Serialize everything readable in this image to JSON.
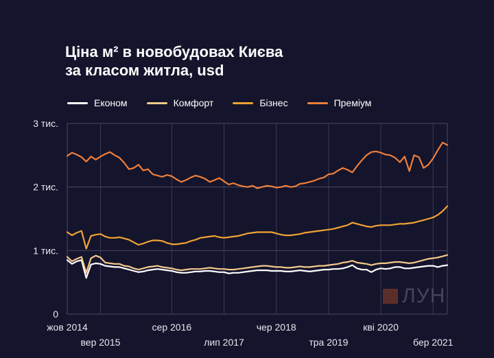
{
  "title_line1": "Ціна м² в новобудовах Києва",
  "title_line2": "за класом житла, usd",
  "watermark": "ЛУН",
  "chart_data": {
    "type": "line",
    "grid": true,
    "legend_position": "top",
    "ylim": [
      0,
      3000
    ],
    "yticks": [
      {
        "value": 0,
        "label": "0"
      },
      {
        "value": 1000,
        "label": "1 тис."
      },
      {
        "value": 2000,
        "label": "2 тис."
      },
      {
        "value": 3000,
        "label": "3 тис."
      }
    ],
    "xlim": [
      0,
      80
    ],
    "xticks": [
      {
        "value": 0,
        "label": "жов 2014",
        "row": 1
      },
      {
        "value": 7,
        "label": "вер 2015",
        "row": 2
      },
      {
        "value": 22,
        "label": "сер 2016",
        "row": 1
      },
      {
        "value": 33,
        "label": "лип 2017",
        "row": 2
      },
      {
        "value": 44,
        "label": "чер 2018",
        "row": 1
      },
      {
        "value": 55,
        "label": "тра 2019",
        "row": 2
      },
      {
        "value": 66,
        "label": "кві 2020",
        "row": 1
      },
      {
        "value": 77,
        "label": "бер 2021",
        "row": 2
      }
    ],
    "series": [
      {
        "name": "Економ",
        "color": "#ffffff",
        "values": [
          850,
          790,
          830,
          850,
          570,
          780,
          800,
          790,
          760,
          750,
          740,
          740,
          720,
          700,
          680,
          660,
          670,
          690,
          700,
          710,
          700,
          690,
          680,
          660,
          650,
          650,
          660,
          670,
          670,
          680,
          680,
          670,
          660,
          660,
          640,
          650,
          650,
          660,
          670,
          680,
          690,
          690,
          690,
          680,
          680,
          680,
          670,
          670,
          680,
          690,
          680,
          670,
          680,
          690,
          700,
          700,
          710,
          710,
          720,
          740,
          770,
          720,
          700,
          700,
          660,
          700,
          720,
          710,
          720,
          740,
          740,
          720,
          720,
          730,
          740,
          750,
          760,
          760,
          740,
          760,
          770
        ]
      },
      {
        "name": "Комфорт",
        "color": "#f3c98a",
        "values": [
          900,
          830,
          870,
          900,
          650,
          880,
          920,
          890,
          810,
          800,
          790,
          790,
          760,
          750,
          720,
          700,
          720,
          740,
          750,
          760,
          740,
          730,
          720,
          700,
          690,
          700,
          710,
          710,
          710,
          720,
          730,
          720,
          710,
          710,
          700,
          700,
          710,
          720,
          730,
          740,
          750,
          760,
          760,
          750,
          740,
          740,
          730,
          730,
          740,
          750,
          740,
          740,
          750,
          760,
          760,
          770,
          780,
          790,
          810,
          820,
          840,
          810,
          800,
          790,
          770,
          790,
          800,
          800,
          810,
          820,
          820,
          810,
          800,
          810,
          830,
          850,
          870,
          880,
          890,
          910,
          930
        ]
      },
      {
        "name": "Бізнес",
        "color": "#f0a334",
        "values": [
          1290,
          1240,
          1280,
          1310,
          1030,
          1230,
          1250,
          1260,
          1220,
          1200,
          1200,
          1210,
          1190,
          1170,
          1130,
          1090,
          1110,
          1140,
          1160,
          1160,
          1150,
          1120,
          1100,
          1100,
          1110,
          1120,
          1150,
          1170,
          1200,
          1210,
          1220,
          1230,
          1210,
          1200,
          1210,
          1220,
          1230,
          1250,
          1270,
          1280,
          1290,
          1290,
          1290,
          1290,
          1270,
          1250,
          1240,
          1240,
          1250,
          1260,
          1280,
          1290,
          1300,
          1310,
          1320,
          1330,
          1340,
          1360,
          1380,
          1400,
          1440,
          1420,
          1400,
          1380,
          1370,
          1390,
          1400,
          1400,
          1400,
          1410,
          1420,
          1420,
          1430,
          1440,
          1460,
          1480,
          1500,
          1520,
          1560,
          1620,
          1700
        ]
      },
      {
        "name": "Преміум",
        "color": "#f07f3a",
        "values": [
          2490,
          2540,
          2510,
          2470,
          2400,
          2480,
          2430,
          2480,
          2520,
          2550,
          2500,
          2460,
          2380,
          2280,
          2300,
          2350,
          2260,
          2280,
          2200,
          2180,
          2160,
          2190,
          2170,
          2120,
          2080,
          2110,
          2150,
          2180,
          2160,
          2130,
          2080,
          2110,
          2140,
          2090,
          2040,
          2060,
          2030,
          2010,
          2000,
          2020,
          1980,
          2000,
          2020,
          2010,
          1990,
          2000,
          2020,
          2000,
          2010,
          2050,
          2060,
          2080,
          2100,
          2130,
          2150,
          2200,
          2210,
          2260,
          2300,
          2270,
          2230,
          2330,
          2420,
          2500,
          2550,
          2560,
          2540,
          2510,
          2500,
          2460,
          2390,
          2480,
          2250,
          2500,
          2470,
          2300,
          2350,
          2450,
          2580,
          2700,
          2660
        ]
      }
    ]
  }
}
